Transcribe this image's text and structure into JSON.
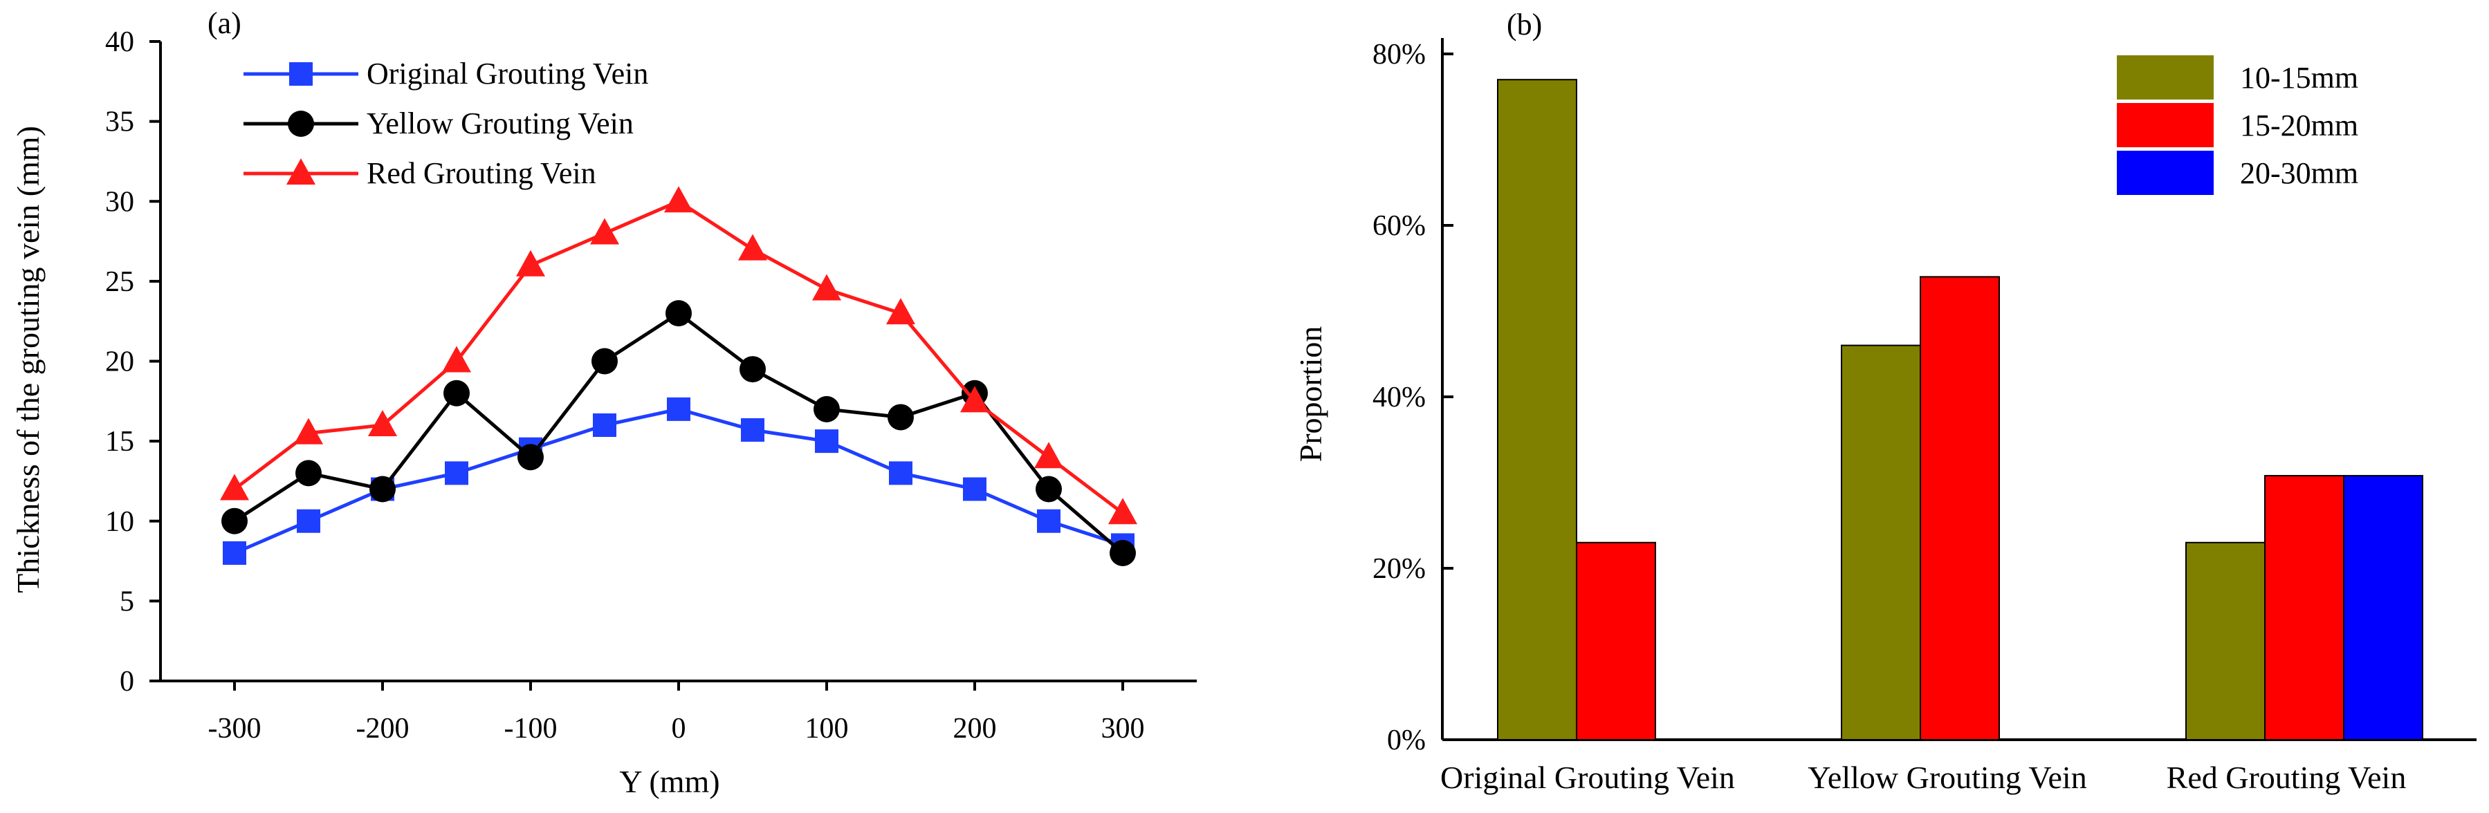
{
  "chart_data": [
    {
      "type": "line",
      "panel_label": "(a)",
      "xlabel": "Y (mm)",
      "ylabel": "Thickness of the grouting vein (mm)",
      "xlim": [
        -350,
        350
      ],
      "ylim": [
        0,
        40
      ],
      "x_ticks": [
        "-300",
        "-200",
        "-100",
        "0",
        "100",
        "200",
        "300"
      ],
      "y_ticks": [
        "0",
        "5",
        "10",
        "15",
        "20",
        "25",
        "30",
        "35",
        "40"
      ],
      "x": [
        -300,
        -250,
        -200,
        -150,
        -100,
        -50,
        0,
        50,
        100,
        150,
        200,
        250,
        300
      ],
      "series": [
        {
          "name": "Original Grouting Vein",
          "color": "#1f3fff",
          "marker": "square",
          "values": [
            8,
            10,
            12,
            13,
            14.5,
            16,
            17,
            15.7,
            15,
            13,
            12,
            10,
            8.5
          ]
        },
        {
          "name": "Yellow Grouting Vein",
          "color": "#000000",
          "marker": "circle",
          "values": [
            10,
            13,
            12,
            18,
            14,
            20,
            23,
            19.5,
            17,
            16.5,
            18,
            12,
            8
          ]
        },
        {
          "name": "Red Grouting Vein",
          "color": "#ff1a1a",
          "marker": "triangle",
          "values": [
            12,
            15.5,
            16,
            20,
            26,
            28,
            30,
            27,
            24.5,
            23,
            17.5,
            14,
            10.5
          ]
        }
      ],
      "legend": "top-left",
      "grid": false
    },
    {
      "type": "bar",
      "panel_label": "(b)",
      "xlabel": "",
      "ylabel": "Proportion",
      "ylim": [
        0,
        80
      ],
      "y_ticks": [
        "0%",
        "20%",
        "40%",
        "60%",
        "80%"
      ],
      "categories": [
        "Original Grouting Vein",
        "Yellow Grouting Vein",
        "Red Grouting Vein"
      ],
      "series": [
        {
          "name": "10-15mm",
          "color": "#808000",
          "values": [
            77,
            46,
            23
          ]
        },
        {
          "name": "15-20mm",
          "color": "#ff0000",
          "values": [
            23,
            54,
            30.8
          ]
        },
        {
          "name": "20-30mm",
          "color": "#0000ff",
          "values": [
            null,
            null,
            30.8
          ]
        }
      ],
      "legend": "top-right",
      "grid": false
    }
  ]
}
